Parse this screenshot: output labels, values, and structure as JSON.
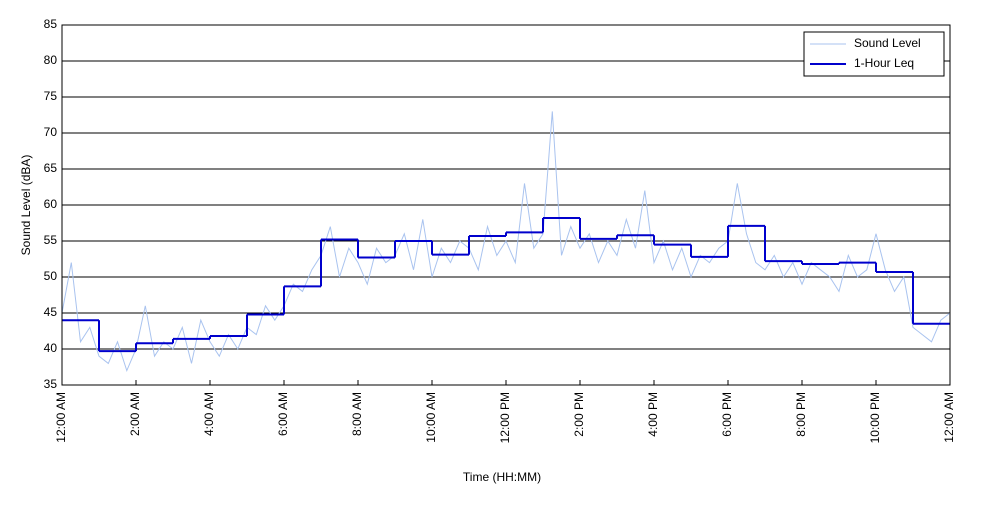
{
  "chart_data": {
    "type": "line",
    "xlabel": "Time (HH:MM)",
    "ylabel": "Sound Level (dBA)",
    "xlim": [
      0,
      24
    ],
    "ylim": [
      35,
      85
    ],
    "xticks": [
      {
        "value": 0,
        "label": "12:00 AM"
      },
      {
        "value": 2,
        "label": "2:00 AM"
      },
      {
        "value": 4,
        "label": "4:00 AM"
      },
      {
        "value": 6,
        "label": "6:00 AM"
      },
      {
        "value": 8,
        "label": "8:00 AM"
      },
      {
        "value": 10,
        "label": "10:00 AM"
      },
      {
        "value": 12,
        "label": "12:00 PM"
      },
      {
        "value": 14,
        "label": "2:00 PM"
      },
      {
        "value": 16,
        "label": "4:00 PM"
      },
      {
        "value": 18,
        "label": "6:00 PM"
      },
      {
        "value": 20,
        "label": "8:00 PM"
      },
      {
        "value": 22,
        "label": "10:00 PM"
      },
      {
        "value": 24,
        "label": "12:00 AM"
      }
    ],
    "yticks": [
      35,
      40,
      45,
      50,
      55,
      60,
      65,
      70,
      75,
      80,
      85
    ],
    "grid": "y",
    "legend": "upper right",
    "series": [
      {
        "name": "Sound Level",
        "color": "#a9c3ef",
        "style": "line",
        "x": [
          0,
          0.25,
          0.5,
          0.75,
          1,
          1.25,
          1.5,
          1.75,
          2,
          2.25,
          2.5,
          2.75,
          3,
          3.25,
          3.5,
          3.75,
          4,
          4.25,
          4.5,
          4.75,
          5,
          5.25,
          5.5,
          5.75,
          6,
          6.25,
          6.5,
          6.75,
          7,
          7.25,
          7.5,
          7.75,
          8,
          8.25,
          8.5,
          8.75,
          9,
          9.25,
          9.5,
          9.75,
          10,
          10.25,
          10.5,
          10.75,
          11,
          11.25,
          11.5,
          11.75,
          12,
          12.25,
          12.5,
          12.75,
          13,
          13.25,
          13.5,
          13.75,
          14,
          14.25,
          14.5,
          14.75,
          15,
          15.25,
          15.5,
          15.75,
          16,
          16.25,
          16.5,
          16.75,
          17,
          17.25,
          17.5,
          17.75,
          18,
          18.25,
          18.5,
          18.75,
          19,
          19.25,
          19.5,
          19.75,
          20,
          20.25,
          20.5,
          20.75,
          21,
          21.25,
          21.5,
          21.75,
          22,
          22.25,
          22.5,
          22.75,
          23,
          23.25,
          23.5,
          23.75,
          24
        ],
        "values": [
          45,
          52,
          41,
          43,
          39,
          38,
          41,
          37,
          40,
          46,
          39,
          41,
          40,
          43,
          38,
          44,
          41,
          39,
          42,
          40,
          43,
          42,
          46,
          44,
          46,
          49,
          48,
          51,
          53,
          57,
          50,
          54,
          52,
          49,
          54,
          52,
          53,
          56,
          51,
          58,
          50,
          54,
          52,
          55,
          54,
          51,
          57,
          53,
          55,
          52,
          63,
          54,
          56,
          73,
          53,
          57,
          54,
          56,
          52,
          55,
          53,
          58,
          54,
          62,
          52,
          55,
          51,
          54,
          50,
          53,
          52,
          54,
          55,
          63,
          56,
          52,
          51,
          53,
          50,
          52,
          49,
          52,
          51,
          50,
          48,
          53,
          50,
          51,
          56,
          51,
          48,
          50,
          43,
          42,
          41,
          44,
          45
        ]
      },
      {
        "name": "1-Hour Leq",
        "color": "#0000cc",
        "style": "step",
        "x": [
          0,
          1,
          2,
          3,
          4,
          5,
          6,
          7,
          8,
          9,
          10,
          11,
          12,
          13,
          14,
          15,
          16,
          17,
          18,
          19,
          20,
          21,
          22,
          23
        ],
        "values": [
          44,
          39.7,
          40.8,
          41.4,
          41.8,
          44.8,
          48.7,
          55.2,
          52.7,
          55.0,
          53.1,
          55.7,
          56.2,
          58.2,
          55.3,
          55.8,
          54.5,
          52.8,
          57.1,
          52.2,
          51.8,
          52.0,
          50.7,
          43.5
        ]
      }
    ]
  }
}
